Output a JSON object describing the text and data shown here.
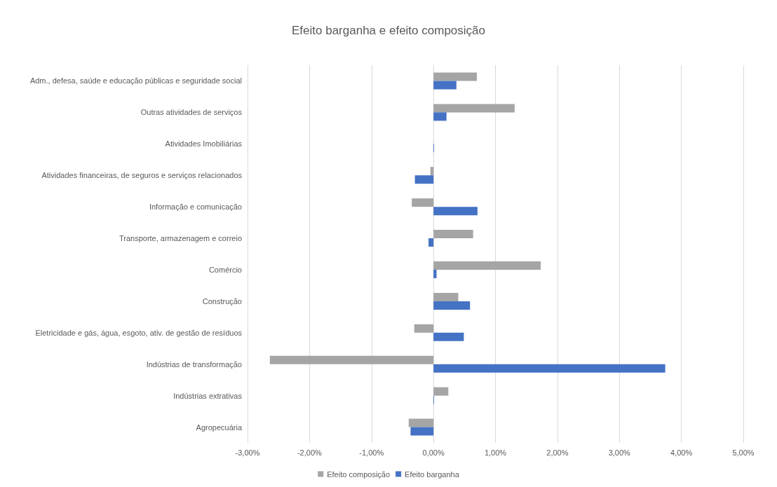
{
  "chart_data": {
    "type": "bar",
    "orientation": "horizontal",
    "title": "Efeito barganha e efeito composição",
    "categories": [
      "Adm., defesa, saúde e educação públicas e seguridade social",
      "Outras atividades de serviços",
      "Atividades Imobiliárias",
      "Atividades financeiras, de seguros e serviços relacionados",
      "Informação e comunicação",
      "Transporte, armazenagem e correio",
      "Comércio",
      "Construção",
      "Eletricidade e gás, água, esgoto, ativ. de gestão de resíduos",
      "Indústrias de transformação",
      "Indústrias extrativas",
      "Agropecuária"
    ],
    "series": [
      {
        "name": "Efeito composição",
        "color": "#a5a5a5",
        "values": [
          0.7,
          1.31,
          0,
          -0.05,
          -0.35,
          0.64,
          1.73,
          0.4,
          -0.31,
          -2.64,
          0.24,
          -0.4
        ]
      },
      {
        "name": "Efeito barganha",
        "color": "#4472c4",
        "values": [
          0.37,
          0.21,
          0.01,
          -0.3,
          0.71,
          -0.08,
          0.05,
          0.59,
          0.49,
          3.74,
          0.01,
          -0.37
        ]
      }
    ],
    "xlim": [
      -3,
      5
    ],
    "xticks": [
      {
        "value": -3,
        "label": "-3,00%"
      },
      {
        "value": -2,
        "label": "-2,00%"
      },
      {
        "value": -1,
        "label": "-1,00%"
      },
      {
        "value": 0,
        "label": "0,00%"
      },
      {
        "value": 1,
        "label": "1,00%"
      },
      {
        "value": 2,
        "label": "2,00%"
      },
      {
        "value": 3,
        "label": "3,00%"
      },
      {
        "value": 4,
        "label": "4,00%"
      },
      {
        "value": 5,
        "label": "5,00%"
      }
    ],
    "grid": "x",
    "legend": "bottom"
  }
}
